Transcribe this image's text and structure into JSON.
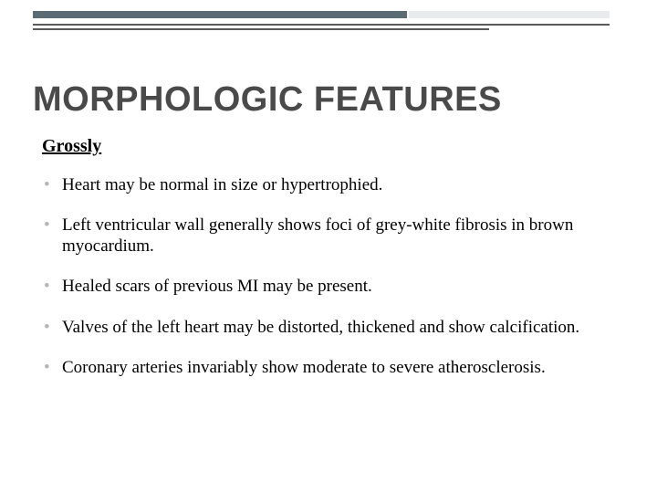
{
  "decoration": {
    "bar1_color": "#5a6b73",
    "bar2_color": "#e9ecee",
    "line_color": "#5a5a5a"
  },
  "title": "MORPHOLOGIC FEATURES",
  "subheading": "Grossly",
  "bullets": [
    "Heart may be normal in size or hypertrophied.",
    "Left ventricular wall generally shows foci of grey-white fibrosis in brown myocardium.",
    "Healed scars of previous MI may be present.",
    "Valves of the left heart may be distorted, thickened and show calcification.",
    "Coronary arteries invariably show moderate to severe atherosclerosis."
  ],
  "styles": {
    "title_fontsize": 38,
    "title_color": "#4a4a4a",
    "subheading_fontsize": 20,
    "body_fontsize": 19,
    "bullet_marker_color": "#b5b5b5",
    "background_color": "#ffffff"
  }
}
